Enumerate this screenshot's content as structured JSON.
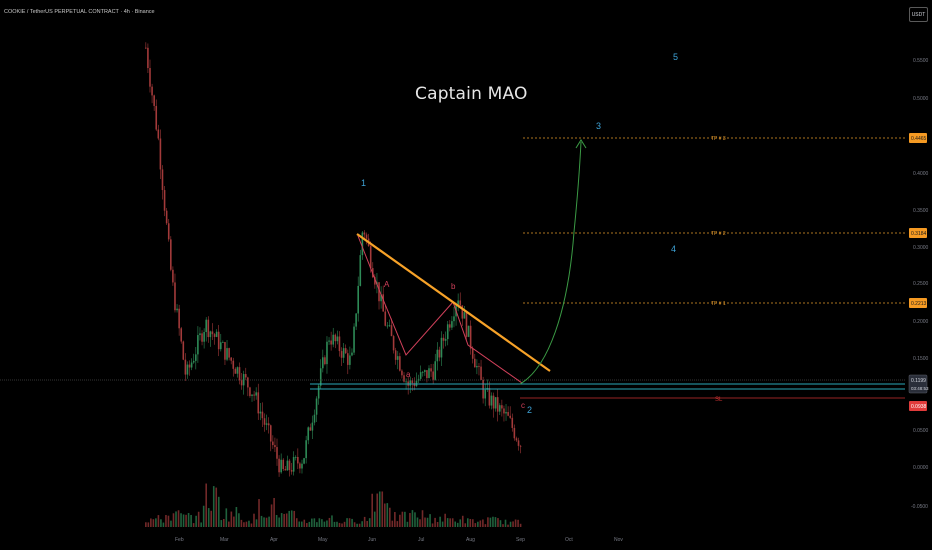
{
  "header": {
    "title": "COOKIE / TetherUS PERPETUAL CONTRACT · 4h · Binance"
  },
  "currency_button": "USDT",
  "watermark": "Captain MAO",
  "colors": {
    "background": "#000000",
    "up": "#2e8b57",
    "down": "#a33a3a",
    "trendline": "#f7a228",
    "wave_label": "#3ea2d6",
    "wave_path": "#d0405a",
    "projection": "#3b9b45",
    "tp_line": "#e59b2c",
    "support": "#2aa7b8",
    "sl": "#c83232"
  },
  "chart_data": {
    "type": "candlestick",
    "title": "COOKIE / TetherUS PERPETUAL CONTRACT · 4h · Binance",
    "scale": "log",
    "price_axis_ticks": [
      "0.5500",
      "0.5000",
      "0.4000",
      "0.3500",
      "0.3000",
      "0.2500",
      "0.2000",
      "0.1500",
      "0.0500",
      "0.0000",
      "-0.0500"
    ],
    "x_tick_labels": [
      "Feb",
      "Mar",
      "Apr",
      "May",
      "Jun",
      "Jul",
      "Aug",
      "Sep",
      "Oct",
      "Nov"
    ],
    "grid": false,
    "price_path_approx": [
      {
        "date": "2025-01-12",
        "close": 0.62
      },
      {
        "date": "2025-01-20",
        "close": 0.42
      },
      {
        "date": "2025-01-28",
        "close": 0.24
      },
      {
        "date": "2025-02-06",
        "close": 0.16
      },
      {
        "date": "2025-02-18",
        "close": 0.2
      },
      {
        "date": "2025-03-01",
        "close": 0.18
      },
      {
        "date": "2025-03-20",
        "close": 0.15
      },
      {
        "date": "2025-04-07",
        "close": 0.108
      },
      {
        "date": "2025-04-20",
        "close": 0.115
      },
      {
        "date": "2025-05-06",
        "close": 0.19
      },
      {
        "date": "2025-05-20",
        "close": 0.17
      },
      {
        "date": "2025-05-27",
        "close": 0.3
      },
      {
        "date": "2025-06-10",
        "close": 0.2
      },
      {
        "date": "2025-06-24",
        "close": 0.155
      },
      {
        "date": "2025-07-10",
        "close": 0.165
      },
      {
        "date": "2025-07-25",
        "close": 0.225
      },
      {
        "date": "2025-08-10",
        "close": 0.15
      },
      {
        "date": "2025-08-25",
        "close": 0.135
      },
      {
        "date": "2025-09-02",
        "close": 0.122
      }
    ],
    "price_labels": [
      {
        "label": "0.4465",
        "kind": "TP # 3"
      },
      {
        "label": "0.3184",
        "kind": "TP # 2"
      },
      {
        "label": "0.2213",
        "kind": "TP # 1"
      },
      {
        "label": "0.1199",
        "kind": "last price"
      },
      {
        "label": "03:48:53",
        "kind": "countdown"
      },
      {
        "label": "0.0938",
        "kind": "SL"
      }
    ],
    "annotations": {
      "targets": [
        "TP # 3",
        "TP # 2",
        "TP # 1"
      ],
      "stop_loss": "SL",
      "waves": [
        "1",
        "2",
        "3",
        "4",
        "5"
      ],
      "sub_waves": [
        "A",
        "a",
        "b",
        "c"
      ]
    },
    "volume_values": [
      8,
      12,
      10,
      30,
      14,
      9,
      20,
      11,
      7,
      9,
      6,
      8,
      35,
      10,
      12,
      9,
      8,
      6,
      7,
      5
    ]
  }
}
